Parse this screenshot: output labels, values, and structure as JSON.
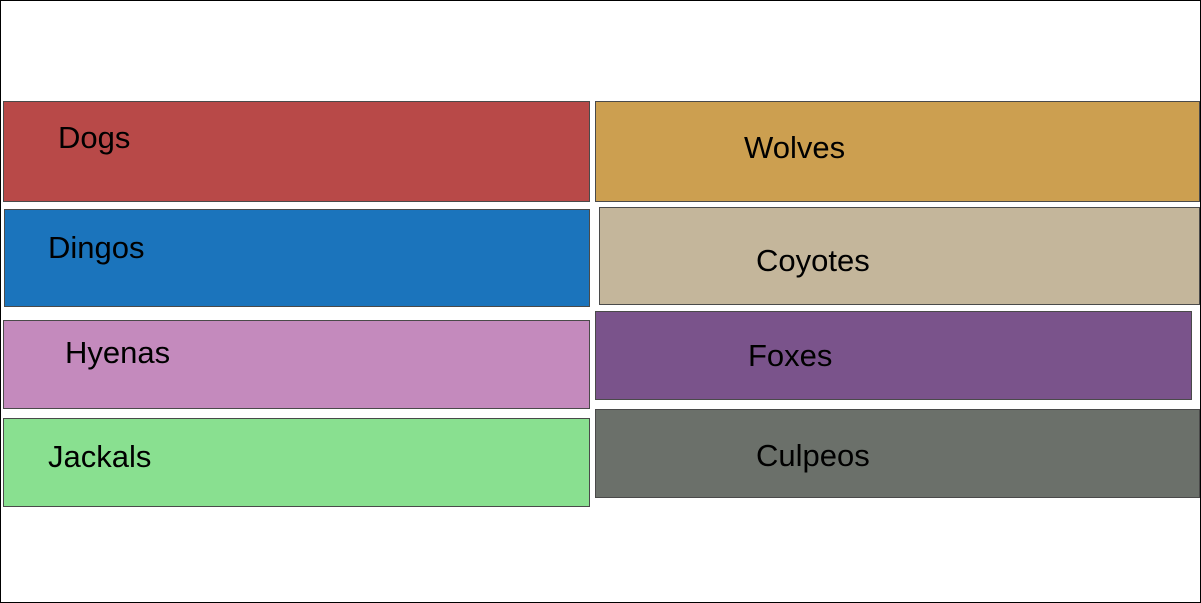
{
  "tiles": [
    {
      "key": "dogs",
      "label": "Dogs",
      "color": "#b84948"
    },
    {
      "key": "wolves",
      "label": "Wolves",
      "color": "#cc9f50"
    },
    {
      "key": "dingos",
      "label": "Dingos",
      "color": "#1b74bc"
    },
    {
      "key": "coyotes",
      "label": "Coyotes",
      "color": "#c4b69b"
    },
    {
      "key": "hyenas",
      "label": "Hyenas",
      "color": "#c48abd"
    },
    {
      "key": "foxes",
      "label": "Foxes",
      "color": "#7a538b"
    },
    {
      "key": "jackals",
      "label": "Jackals",
      "color": "#89e090"
    },
    {
      "key": "culpeos",
      "label": "Culpeos",
      "color": "#6b706a"
    }
  ]
}
